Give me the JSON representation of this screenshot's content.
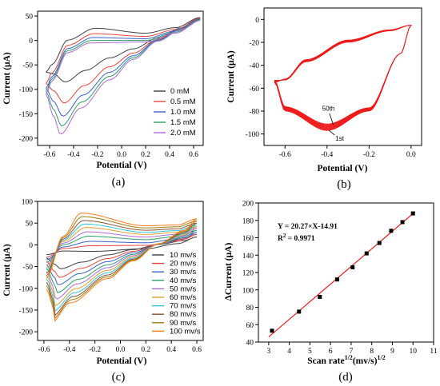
{
  "chart_data": [
    {
      "panel": "(a)",
      "type": "line",
      "xlabel": "Potential (V)",
      "ylabel": "Current (μA)",
      "xlim": [
        -0.7,
        0.68
      ],
      "ylim": [
        -215,
        60
      ],
      "xticks": [
        -0.6,
        -0.4,
        -0.2,
        0.0,
        0.2,
        0.4,
        0.6
      ],
      "xtick_labels": [
        "-0.6",
        "-0.4",
        "-0.2",
        "0.0",
        "0.2",
        "0.4",
        "0.6"
      ],
      "yticks": [
        50,
        0,
        -50,
        -100,
        -150,
        -200
      ],
      "ytick_labels": [
        "50",
        "0",
        "-50",
        "-100",
        "-150",
        "-200"
      ],
      "legend_position": "bottom-right",
      "series": [
        {
          "name": "0    mM",
          "color": "#404040",
          "peak_anodic": 25,
          "peak_cathodic": -85,
          "start": -65
        },
        {
          "name": "0.5 mM",
          "color": "#e8453c",
          "peak_anodic": 14,
          "peak_cathodic": -128,
          "start": -88
        },
        {
          "name": "1.0 mM",
          "color": "#3a62c8",
          "peak_anodic": 6,
          "peak_cathodic": -155,
          "start": -98
        },
        {
          "name": "1.5 mM",
          "color": "#2aa06a",
          "peak_anodic": 0,
          "peak_cathodic": -175,
          "start": -104
        },
        {
          "name": "2.0 mM",
          "color": "#b06ad8",
          "peak_anodic": -5,
          "peak_cathodic": -192,
          "start": -110
        }
      ]
    },
    {
      "panel": "(b)",
      "type": "line",
      "xlabel": "Potential (V)",
      "ylabel": "Current (μA)",
      "xlim": [
        -0.7,
        0.05
      ],
      "ylim": [
        -110,
        10
      ],
      "xticks": [
        -0.6,
        -0.4,
        -0.2,
        0.0
      ],
      "xtick_labels": [
        "-0.6",
        "-0.4",
        "-0.2",
        "0.0"
      ],
      "yticks": [
        0,
        -20,
        -40,
        -60,
        -80,
        -100
      ],
      "ytick_labels": [
        "0",
        "-20",
        "-40",
        "-60",
        "-80",
        "-100"
      ],
      "color": "#ee1c1c",
      "cycles": 50,
      "annotations": [
        {
          "text": "50th",
          "x": -0.4,
          "y": -84
        },
        {
          "text": "1st",
          "x": -0.36,
          "y": -103
        }
      ]
    },
    {
      "panel": "(c)",
      "type": "line",
      "xlabel": "Potential (V)",
      "ylabel": "Current (μA)",
      "xlim": [
        -0.65,
        0.65
      ],
      "ylim": [
        -220,
        100
      ],
      "xticks": [
        -0.6,
        -0.4,
        -0.2,
        0.0,
        0.2,
        0.4,
        0.6
      ],
      "xtick_labels": [
        "-0.6",
        "-0.4",
        "-0.2",
        "0.0",
        "0.2",
        "0.4",
        "0.6"
      ],
      "yticks": [
        100,
        50,
        0,
        -50,
        -100,
        -150,
        -200
      ],
      "ytick_labels": [
        "100",
        "50",
        "0",
        "-50",
        "-100",
        "-150",
        "-200"
      ],
      "legend_position": "bottom-right",
      "series": [
        {
          "name": "10    mv/s",
          "color": "#404040",
          "peak_anodic": -15,
          "peak_cathodic": -55,
          "end": 18
        },
        {
          "name": "20    mv/s",
          "color": "#e8453c",
          "peak_anodic": -2,
          "peak_cathodic": -75,
          "end": 24
        },
        {
          "name": "30    mv/s",
          "color": "#3a62c8",
          "peak_anodic": 8,
          "peak_cathodic": -92,
          "end": 28
        },
        {
          "name": "40    mv/s",
          "color": "#2aa06a",
          "peak_anodic": 20,
          "peak_cathodic": -110,
          "end": 33
        },
        {
          "name": "50    mv/s",
          "color": "#b06ad8",
          "peak_anodic": 30,
          "peak_cathodic": -125,
          "end": 38
        },
        {
          "name": "60    mv/s",
          "color": "#e0a030",
          "peak_anodic": 40,
          "peak_cathodic": -140,
          "end": 42
        },
        {
          "name": "70    mv/s",
          "color": "#30c8d8",
          "peak_anodic": 48,
          "peak_cathodic": -153,
          "end": 46
        },
        {
          "name": "80    mv/s",
          "color": "#885030",
          "peak_anodic": 56,
          "peak_cathodic": -165,
          "end": 50
        },
        {
          "name": "90    mv/s",
          "color": "#a07a10",
          "peak_anodic": 65,
          "peak_cathodic": -175,
          "end": 55
        },
        {
          "name": "100  mv/s",
          "color": "#ff7a1a",
          "peak_anodic": 73,
          "peak_cathodic": -185,
          "end": 60
        }
      ]
    },
    {
      "panel": "(d)",
      "type": "scatter",
      "xlabel": "Scan rate",
      "xlabel_sup1": "1/2",
      "xlabel_mid": "(mv/s)",
      "xlabel_sup2": "1/2",
      "ylabel": "ΔCurrent (μA)",
      "xlim": [
        2.5,
        11
      ],
      "ylim": [
        40,
        200
      ],
      "xticks": [
        3,
        4,
        5,
        6,
        7,
        8,
        9,
        10,
        11
      ],
      "xtick_labels": [
        "3",
        "4",
        "5",
        "6",
        "7",
        "8",
        "9",
        "10",
        "11"
      ],
      "yticks": [
        40,
        60,
        80,
        100,
        120,
        140,
        160,
        180,
        200
      ],
      "ytick_labels": [
        "40",
        "60",
        "80",
        "100",
        "120",
        "140",
        "160",
        "180",
        "200"
      ],
      "x": [
        3.16,
        4.47,
        5.48,
        6.32,
        7.07,
        7.75,
        8.37,
        8.94,
        9.49,
        10.0
      ],
      "y": [
        53,
        75,
        92,
        112,
        126,
        142,
        154,
        168,
        178,
        188
      ],
      "fit": {
        "slope": 20.27,
        "intercept": -14.91,
        "x_range": [
          3.0,
          10.1
        ],
        "color": "#ee1c1c"
      },
      "equation": "Y = 20.27×X-14.91",
      "r2_label": "R",
      "r2_sup": "2",
      "r2_value": " = 0.9971"
    }
  ]
}
